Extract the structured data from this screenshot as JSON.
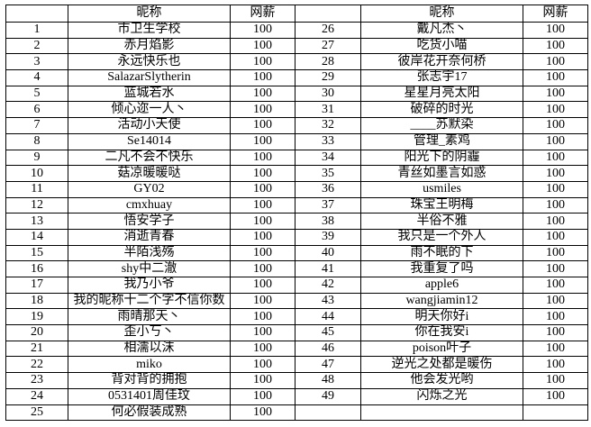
{
  "colors": {
    "background": "#ffffff",
    "grid_border": "#000000",
    "text": "#000000"
  },
  "table": {
    "headers": [
      "",
      "昵称",
      "网薪",
      "",
      "昵称",
      "网薪"
    ],
    "rows": [
      [
        "1",
        "市卫生学校",
        "100",
        "26",
        "戴凡杰丶",
        "100"
      ],
      [
        "2",
        "赤月焰影",
        "100",
        "27",
        "吃货小喵",
        "100"
      ],
      [
        "3",
        "永远快乐也",
        "100",
        "28",
        "彼岸花开奈何桥",
        "100"
      ],
      [
        "4",
        "SalazarSlytherin",
        "100",
        "29",
        "张志宇17",
        "100"
      ],
      [
        "5",
        "蓝城若水",
        "100",
        "30",
        "星星月亮太阳",
        "100"
      ],
      [
        "6",
        "倾心迩一人丶",
        "100",
        "31",
        "破碎的时光",
        "100"
      ],
      [
        "7",
        "活动小天使",
        "100",
        "32",
        "____苏默染",
        "100"
      ],
      [
        "8",
        "Se14014",
        "100",
        "33",
        "管理_素鸡",
        "100"
      ],
      [
        "9",
        "二凡不会不快乐",
        "100",
        "34",
        "阳光下的阴霾",
        "100"
      ],
      [
        "10",
        "菇凉暖暖哒",
        "100",
        "35",
        "青丝如墨言如惑",
        "100"
      ],
      [
        "11",
        "GY02",
        "100",
        "36",
        "usmiles",
        "100"
      ],
      [
        "12",
        "cmxhuay",
        "100",
        "37",
        "珠宝王明梅",
        "100"
      ],
      [
        "13",
        "悟安学子",
        "100",
        "38",
        "半俗不雅",
        "100"
      ],
      [
        "14",
        "消逝青春",
        "100",
        "39",
        "我只是一个外人",
        "100"
      ],
      [
        "15",
        "半陌浅殇",
        "100",
        "40",
        "雨不眠的下",
        "100"
      ],
      [
        "16",
        "shy中二澈",
        "100",
        "41",
        "我重复了吗",
        "100"
      ],
      [
        "17",
        "我乃小爷",
        "100",
        "42",
        "apple6",
        "100"
      ],
      [
        "18",
        "我的昵称十二个字不信你数",
        "100",
        "43",
        "wangjiamin12",
        "100"
      ],
      [
        "19",
        "雨晴那天丶",
        "100",
        "44",
        "明天你好i",
        "100"
      ],
      [
        "20",
        "歪小丂丶",
        "100",
        "45",
        "你在我安i",
        "100"
      ],
      [
        "21",
        "相濡以沫",
        "100",
        "46",
        "poison叶子",
        "100"
      ],
      [
        "22",
        "miko",
        "100",
        "47",
        "逆光之处都是暖伤",
        "100"
      ],
      [
        "23",
        "背对背的拥抱",
        "100",
        "48",
        "他会发光哟",
        "100"
      ],
      [
        "24",
        "0531401周佳玟",
        "100",
        "49",
        "闪烁之光",
        "100"
      ],
      [
        "25",
        "何必假装成熟",
        "100",
        "",
        "",
        ""
      ]
    ]
  }
}
